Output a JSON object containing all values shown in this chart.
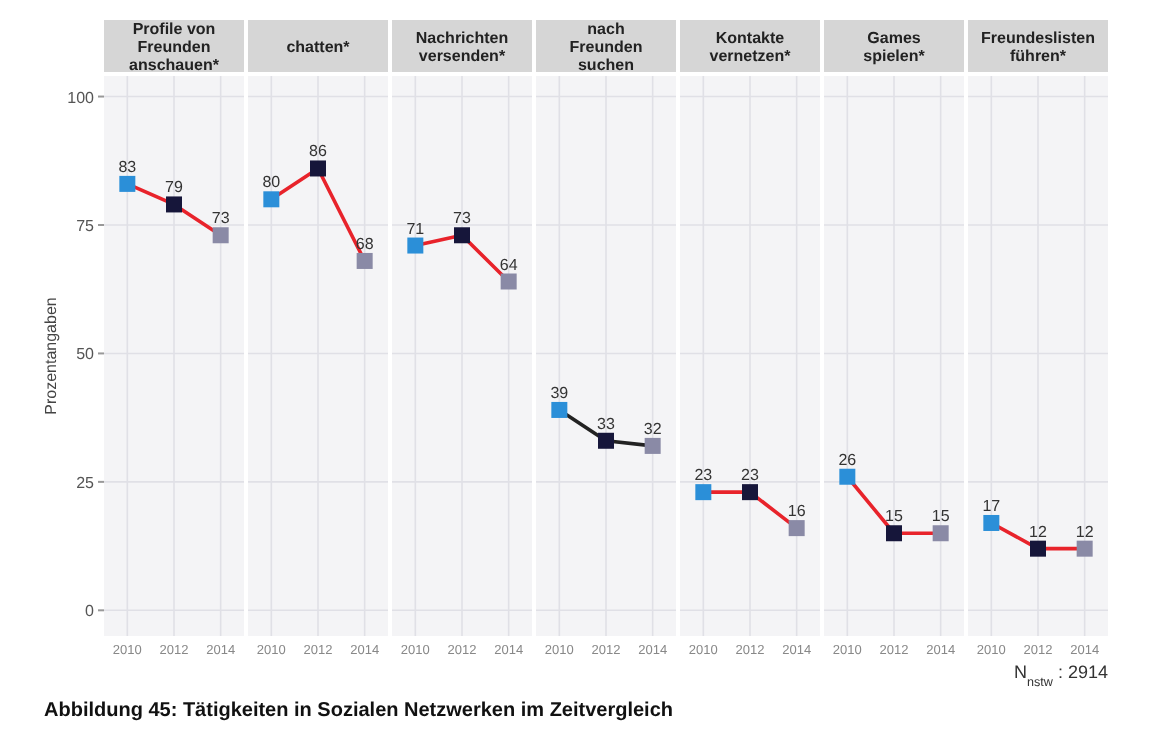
{
  "chart_data": [
    {
      "type": "line",
      "title": "Profile von\nFreunden\nanschauen*",
      "ylabel": "Prozentangaben",
      "categories": [
        "2010",
        "2012",
        "2014"
      ],
      "ylim": [
        -5,
        104
      ],
      "yticks": [
        0,
        25,
        50,
        75,
        100
      ],
      "grid": true,
      "data_labels": true,
      "annotations": [
        "Abbildung 45: Tätigkeiten in Sozialen Netzwerken im Zeitvergleich"
      ],
      "series": [
        {
          "type": "line",
          "color": "#e8232b",
          "marker": "square",
          "colors": [
            "#2b8fd8",
            "#16163a",
            "#8a8aa6"
          ],
          "values": [
            83,
            79,
            73
          ]
        }
      ]
    },
    {
      "type": "line",
      "title": "chatten*",
      "categories": [
        "2010",
        "2012",
        "2014"
      ],
      "ylim": [
        -5,
        104
      ],
      "yticks": [
        0,
        25,
        50,
        75,
        100
      ],
      "tick_labels": "x",
      "grid": true,
      "data_labels": true,
      "series": [
        {
          "type": "line",
          "color": "#e8232b",
          "marker": "square",
          "colors": [
            "#2b8fd8",
            "#16163a",
            "#8a8aa6"
          ],
          "values": [
            80,
            86,
            68
          ]
        }
      ]
    },
    {
      "type": "line",
      "title": "Nachrichten\nversenden*",
      "categories": [
        "2010",
        "2012",
        "2014"
      ],
      "ylim": [
        -5,
        104
      ],
      "yticks": [
        0,
        25,
        50,
        75,
        100
      ],
      "tick_labels": "x",
      "grid": true,
      "data_labels": true,
      "series": [
        {
          "type": "line",
          "color": "#e8232b",
          "marker": "square",
          "colors": [
            "#2b8fd8",
            "#16163a",
            "#8a8aa6"
          ],
          "values": [
            71,
            73,
            64
          ]
        }
      ]
    },
    {
      "type": "line",
      "title": "nach\nFreunden\nsuchen",
      "categories": [
        "2010",
        "2012",
        "2014"
      ],
      "ylim": [
        -5,
        104
      ],
      "yticks": [
        0,
        25,
        50,
        75,
        100
      ],
      "tick_labels": "x",
      "grid": true,
      "data_labels": true,
      "series": [
        {
          "type": "line",
          "color": "#222222",
          "marker": "square",
          "colors": [
            "#2b8fd8",
            "#16163a",
            "#8a8aa6"
          ],
          "values": [
            39,
            33,
            32
          ]
        }
      ]
    },
    {
      "type": "line",
      "title": "Kontakte\nvernetzen*",
      "categories": [
        "2010",
        "2012",
        "2014"
      ],
      "ylim": [
        -5,
        104
      ],
      "yticks": [
        0,
        25,
        50,
        75,
        100
      ],
      "tick_labels": "x",
      "grid": true,
      "data_labels": true,
      "series": [
        {
          "type": "line",
          "color": "#e8232b",
          "marker": "square",
          "colors": [
            "#2b8fd8",
            "#16163a",
            "#8a8aa6"
          ],
          "values": [
            23,
            23,
            16
          ]
        }
      ]
    },
    {
      "type": "line",
      "title": "Games\nspielen*",
      "categories": [
        "2010",
        "2012",
        "2014"
      ],
      "ylim": [
        -5,
        104
      ],
      "yticks": [
        0,
        25,
        50,
        75,
        100
      ],
      "tick_labels": "x",
      "grid": true,
      "data_labels": true,
      "series": [
        {
          "type": "line",
          "color": "#e8232b",
          "marker": "square",
          "colors": [
            "#2b8fd8",
            "#16163a",
            "#8a8aa6"
          ],
          "values": [
            26,
            15,
            15
          ]
        }
      ]
    },
    {
      "type": "line",
      "title": "Freundeslisten\nführen*",
      "categories": [
        "2010",
        "2012",
        "2014"
      ],
      "ylim": [
        -5,
        104
      ],
      "yticks": [
        0,
        25,
        50,
        75,
        100
      ],
      "tick_labels": "x",
      "grid": true,
      "data_labels": true,
      "annotations": [
        "N$_{nstw}$: 2914"
      ],
      "series": [
        {
          "type": "line",
          "color": "#e8232b",
          "marker": "square",
          "colors": [
            "#2b8fd8",
            "#16163a",
            "#8a8aa6"
          ],
          "values": [
            17,
            12,
            12
          ]
        }
      ]
    }
  ]
}
